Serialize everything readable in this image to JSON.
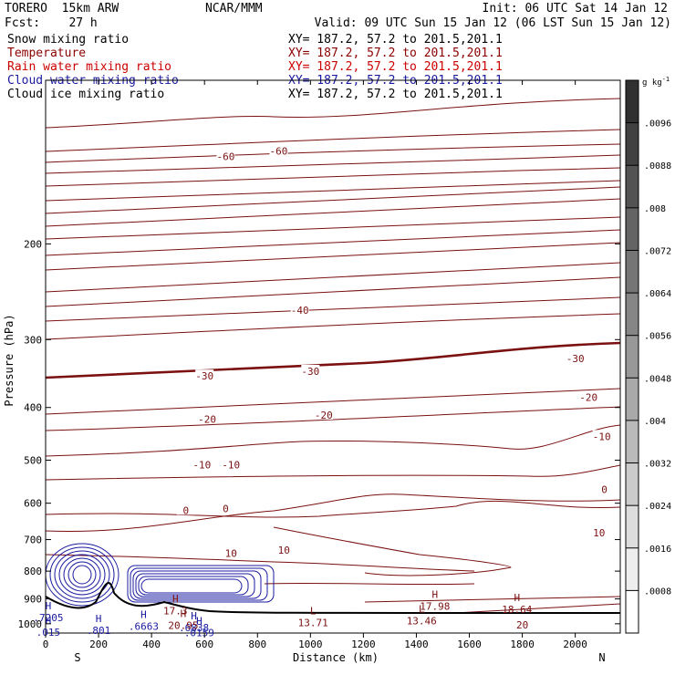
{
  "header": {
    "model": "TORERO  15km ARW",
    "center": "NCAR/MMM",
    "init": "Init: 06 UTC Sat 14 Jan 12",
    "fcst": "Fcst:    27 h",
    "valid": "Valid: 09 UTC Sun 15 Jan 12 (06 LST Sun 15 Jan 12)",
    "legend": [
      {
        "name": "Snow mixing ratio",
        "color": "#000000",
        "xy": "XY= 187.2, 57.2 to 201.5,201.1"
      },
      {
        "name": "Temperature",
        "color": "#8b0000",
        "xy": "XY= 187.2, 57.2 to 201.5,201.1"
      },
      {
        "name": "Rain water mixing ratio",
        "color": "#cc0000",
        "xy": "XY= 187.2, 57.2 to 201.5,201.1"
      },
      {
        "name": "Cloud water mixing ratio",
        "color": "#1a1aa0",
        "xy": "XY= 187.2, 57.2 to 201.5,201.1"
      },
      {
        "name": "Cloud ice mixing ratio",
        "color": "#000000",
        "xy": "XY= 187.2, 57.2 to 201.5,201.1"
      }
    ]
  },
  "chart_data": {
    "type": "cross-section contour",
    "xlabel": "Distance (km)",
    "ylabel": "Pressure (hPa)",
    "xlim": [
      0,
      2170
    ],
    "ylim": [
      1040,
      100
    ],
    "y_scale": "log",
    "xticks": [
      0,
      200,
      400,
      600,
      800,
      1000,
      1200,
      1400,
      1600,
      1800,
      2000
    ],
    "yticks": [
      200,
      300,
      400,
      500,
      600,
      700,
      800,
      900,
      1000
    ],
    "endpoint_labels": {
      "left": "S",
      "right": "N"
    },
    "colorbar": {
      "units": "g kg",
      "units_exp": "-1",
      "ticks": [
        ".0008",
        ".0016",
        ".0024",
        ".0032",
        ".004",
        ".0048",
        ".0056",
        ".0064",
        ".0072",
        ".008",
        ".0088",
        ".0096"
      ],
      "tick_values": [
        0.0008,
        0.0016,
        0.0024,
        0.0032,
        0.004,
        0.0048,
        0.0056,
        0.0064,
        0.0072,
        0.008,
        0.0088,
        0.0096
      ],
      "range": [
        0,
        0.0104
      ],
      "color_low": "#ffffff",
      "color_high": "#303030"
    },
    "isotherm_color": "#7a1010",
    "isotherm_labels": [
      {
        "text": "-60",
        "x": 680,
        "p": 138
      },
      {
        "text": "-60",
        "x": 880,
        "p": 135
      },
      {
        "text": "-40",
        "x": 960,
        "p": 265
      },
      {
        "text": "-30",
        "x": 2000,
        "p": 325
      },
      {
        "text": "-30",
        "x": 600,
        "p": 350
      },
      {
        "text": "-30",
        "x": 1000,
        "p": 343
      },
      {
        "text": "-20",
        "x": 2050,
        "p": 383
      },
      {
        "text": "-20",
        "x": 610,
        "p": 420
      },
      {
        "text": "-20",
        "x": 1050,
        "p": 413
      },
      {
        "text": "-10",
        "x": 2100,
        "p": 452
      },
      {
        "text": "-10",
        "x": 590,
        "p": 510
      },
      {
        "text": "-10",
        "x": 700,
        "p": 510
      },
      {
        "text": "0",
        "x": 530,
        "p": 618
      },
      {
        "text": "0",
        "x": 680,
        "p": 614
      },
      {
        "text": "0",
        "x": 2110,
        "p": 566
      },
      {
        "text": "10",
        "x": 2090,
        "p": 680
      },
      {
        "text": "10",
        "x": 700,
        "p": 741
      },
      {
        "text": "10",
        "x": 900,
        "p": 731
      },
      {
        "text": "20",
        "x": 1800,
        "p": 1005
      }
    ],
    "extrema_labels": [
      {
        "type": "H",
        "value": "17.3",
        "x": 490,
        "p": 913
      },
      {
        "type": "H",
        "value": "17.98",
        "x": 1470,
        "p": 897
      },
      {
        "type": "H",
        "value": "18.64",
        "x": 1780,
        "p": 908
      },
      {
        "type": "L",
        "value": "13.71",
        "x": 1010,
        "p": 960
      },
      {
        "type": "L",
        "value": "13.46",
        "x": 1420,
        "p": 953
      },
      {
        "type": "H",
        "value": ".7205",
        "x": 10,
        "p": 940
      },
      {
        "type": "H",
        "value": ".6663",
        "x": 370,
        "p": 975
      },
      {
        "type": "H",
        "value": ".6838",
        "x": 560,
        "p": 981
      },
      {
        "type": "H",
        "value": ".015",
        "x": 10,
        "p": 1000
      },
      {
        "type": "H",
        "value": ".0159",
        "x": 580,
        "p": 1003
      },
      {
        "type": "H",
        "value": "20.95",
        "x": 520,
        "p": 972
      },
      {
        "type": "H",
        "value": ".801",
        "x": 200,
        "p": 992
      }
    ]
  }
}
